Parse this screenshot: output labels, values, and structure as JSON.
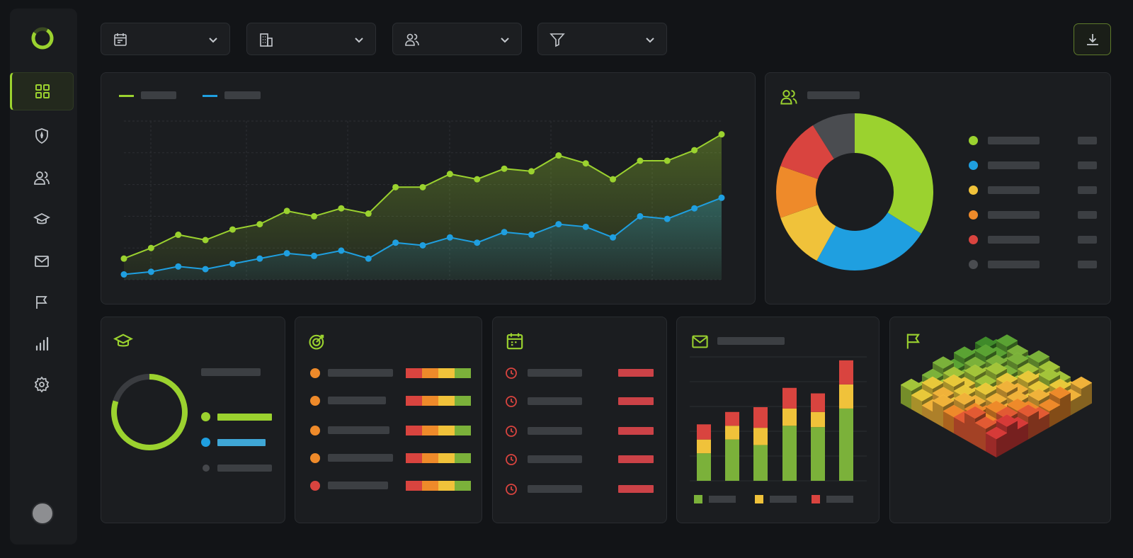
{
  "theme": {
    "accent": "#9bd22f",
    "blue": "#1f9fe0",
    "yellow": "#f0c23a",
    "orange": "#ee8a2a",
    "red": "#d9443f",
    "gray": "#4a4c50"
  },
  "sidebar": {
    "logo": "ring-logo",
    "items": [
      {
        "icon": "dashboard-grid-icon",
        "active": true
      },
      {
        "icon": "shield-icon",
        "active": false
      },
      {
        "icon": "users-icon",
        "active": false
      },
      {
        "icon": "graduation-cap-icon",
        "active": false
      },
      {
        "icon": "mail-icon",
        "active": false
      },
      {
        "icon": "flag-icon",
        "active": false
      },
      {
        "icon": "bar-chart-icon",
        "active": false
      },
      {
        "icon": "settings-gear-icon",
        "active": false
      }
    ]
  },
  "filters": [
    {
      "icon": "calendar-icon"
    },
    {
      "icon": "building-icon"
    },
    {
      "icon": "users-icon"
    },
    {
      "icon": "filter-funnel-icon"
    }
  ],
  "toolbar": {
    "download_icon": "download-icon"
  },
  "chart_data": [
    {
      "type": "area",
      "series": [
        {
          "color": "#9bd22f",
          "values": [
            8,
            12,
            17,
            15,
            19,
            21,
            26,
            24,
            27,
            25,
            35,
            35,
            40,
            38,
            42,
            41,
            47,
            44,
            38,
            45,
            45,
            49,
            55
          ]
        },
        {
          "color": "#1f9fe0",
          "values": [
            2,
            3,
            5,
            4,
            6,
            8,
            10,
            9,
            11,
            8,
            14,
            13,
            16,
            14,
            18,
            17,
            21,
            20,
            16,
            24,
            23,
            27,
            31
          ]
        }
      ],
      "ylim": [
        0,
        60
      ],
      "grid": true
    },
    {
      "type": "pie",
      "donut": true,
      "values": [
        38,
        27,
        13,
        12,
        12,
        10
      ],
      "colors": [
        "#9bd22f",
        "#1f9fe0",
        "#f0c23a",
        "#ee8a2a",
        "#d9443f",
        "#4a4c50"
      ]
    },
    {
      "type": "pie",
      "donut": true,
      "values": [
        80,
        20
      ],
      "colors": [
        "#9bd22f",
        "#3a3c40"
      ]
    },
    {
      "type": "bar",
      "stacked": true,
      "series": [
        {
          "color": "#7bb13a",
          "values": [
            40,
            60,
            52,
            80,
            78,
            105
          ]
        },
        {
          "color": "#f0c23a",
          "values": [
            20,
            20,
            25,
            25,
            22,
            35
          ]
        },
        {
          "color": "#d9443f",
          "values": [
            22,
            20,
            30,
            30,
            27,
            35
          ]
        }
      ],
      "ylim": [
        0,
        180
      ]
    }
  ],
  "panels": {
    "donut_legend_colors": [
      "#9bd22f",
      "#1f9fe0",
      "#f0c23a",
      "#ee8a2a",
      "#d9443f",
      "#4a4c50"
    ],
    "course_icon": "graduation-cap-icon",
    "target_icon": "target-icon",
    "calendar_icon": "calendar-icon",
    "mail_icon": "mail-icon",
    "flag_icon": "flag-icon",
    "target_dots": [
      "#ee8a2a",
      "#ee8a2a",
      "#ee8a2a",
      "#ee8a2a",
      "#d9443f"
    ],
    "risk_bar_colors": [
      "#d9443f",
      "#ee8a2a",
      "#f0c23a",
      "#7bb13a"
    ]
  }
}
